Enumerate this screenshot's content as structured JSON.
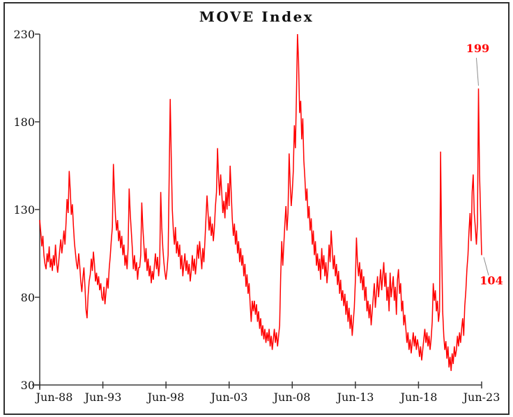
{
  "chart_data": {
    "type": "line",
    "title": "MOVE Index",
    "series_name": "MOVE Index",
    "frequency": "monthly",
    "x_start_label": "Jun-88",
    "x_end_label": "Jun-23",
    "x_tick_labels": [
      "Jun-88",
      "Jun-93",
      "Jun-98",
      "Jun-03",
      "Jun-08",
      "Jun-13",
      "Jun-18",
      "Jun-23"
    ],
    "y_ticks": [
      230,
      180,
      130,
      80,
      30
    ],
    "ylim": [
      30,
      230
    ],
    "xlabel": "",
    "ylabel": "",
    "grid": false,
    "legend": "none",
    "colors": {
      "line": "#FF0000",
      "annotation": "#FF0000",
      "axis": "#383838",
      "leader": "#8c8c8c",
      "border": "#2f2f2f",
      "text": "#111111",
      "background": "#ffffff"
    },
    "values": [
      124,
      117,
      109,
      115,
      104,
      99,
      96,
      105,
      100,
      109,
      97,
      102,
      95,
      104,
      98,
      110,
      100,
      94,
      100,
      107,
      113,
      105,
      111,
      118,
      110,
      122,
      136,
      128,
      152,
      141,
      127,
      133,
      121,
      111,
      105,
      99,
      96,
      105,
      98,
      89,
      83,
      91,
      97,
      86,
      73,
      68,
      81,
      89,
      93,
      102,
      95,
      106,
      99,
      89,
      94,
      87,
      92,
      84,
      88,
      80,
      78,
      86,
      76,
      83,
      91,
      85,
      96,
      103,
      112,
      120,
      156,
      140,
      126,
      118,
      124,
      112,
      118,
      108,
      115,
      104,
      110,
      98,
      104,
      96,
      108,
      142,
      128,
      118,
      108,
      96,
      104,
      95,
      100,
      90,
      97,
      97,
      104,
      134,
      120,
      110,
      100,
      108,
      95,
      102,
      92,
      98,
      88,
      95,
      90,
      98,
      105,
      96,
      103,
      92,
      99,
      140,
      120,
      108,
      100,
      94,
      90,
      96,
      104,
      148,
      193,
      160,
      130,
      118,
      110,
      120,
      105,
      112,
      103,
      110,
      96,
      104,
      92,
      99,
      105,
      95,
      101,
      93,
      99,
      89,
      95,
      104,
      95,
      102,
      93,
      100,
      110,
      102,
      112,
      104,
      96,
      108,
      100,
      112,
      125,
      138,
      128,
      118,
      126,
      115,
      122,
      112,
      120,
      132,
      140,
      165,
      148,
      138,
      150,
      140,
      128,
      135,
      125,
      140,
      130,
      145,
      132,
      155,
      140,
      125,
      115,
      122,
      110,
      118,
      105,
      112,
      100,
      108,
      98,
      104,
      92,
      99,
      86,
      93,
      82,
      88,
      76,
      66,
      78,
      72,
      78,
      70,
      76,
      66,
      72,
      62,
      68,
      58,
      64,
      56,
      62,
      54,
      60,
      55,
      62,
      52,
      58,
      50,
      56,
      62,
      54,
      60,
      52,
      58,
      64,
      92,
      112,
      98,
      110,
      122,
      132,
      118,
      128,
      162,
      145,
      132,
      140,
      152,
      178,
      165,
      195,
      230,
      215,
      185,
      192,
      170,
      182,
      158,
      148,
      135,
      142,
      125,
      132,
      118,
      125,
      110,
      118,
      104,
      112,
      98,
      105,
      95,
      102,
      90,
      108,
      96,
      104,
      92,
      100,
      88,
      96,
      110,
      100,
      118,
      108,
      96,
      104,
      92,
      99,
      87,
      95,
      82,
      90,
      78,
      84,
      75,
      82,
      70,
      78,
      66,
      74,
      62,
      70,
      58,
      66,
      74,
      90,
      114,
      100,
      92,
      100,
      88,
      96,
      84,
      92,
      78,
      86,
      72,
      78,
      68,
      76,
      64,
      72,
      80,
      88,
      74,
      82,
      92,
      80,
      88,
      96,
      84,
      92,
      100,
      86,
      94,
      78,
      86,
      72,
      94,
      80,
      86,
      92,
      78,
      86,
      70,
      90,
      96,
      82,
      88,
      72,
      78,
      64,
      70,
      62,
      54,
      60,
      50,
      56,
      48,
      54,
      60,
      52,
      58,
      50,
      56,
      52,
      46,
      52,
      44,
      50,
      56,
      62,
      54,
      60,
      52,
      58,
      50,
      56,
      66,
      88,
      78,
      84,
      72,
      78,
      66,
      72,
      163,
      110,
      72,
      58,
      50,
      55,
      45,
      52,
      40,
      46,
      38,
      48,
      42,
      52,
      46,
      50,
      58,
      52,
      60,
      54,
      62,
      68,
      58,
      75,
      84,
      96,
      104,
      118,
      128,
      112,
      140,
      150,
      128,
      120,
      110,
      122,
      199,
      150,
      128,
      104
    ],
    "annotations": [
      {
        "label": "199",
        "x_index": 417,
        "value": 199,
        "text_dx": -1,
        "text_dy": -52,
        "leader": [
          [
            -3,
            -44
          ],
          [
            0,
            -4
          ]
        ]
      },
      {
        "label": "104",
        "x_index": 420,
        "value": 104,
        "text_dx": 14,
        "text_dy": 42,
        "leader": [
          [
            3,
            3
          ],
          [
            10,
            29
          ]
        ]
      }
    ]
  }
}
